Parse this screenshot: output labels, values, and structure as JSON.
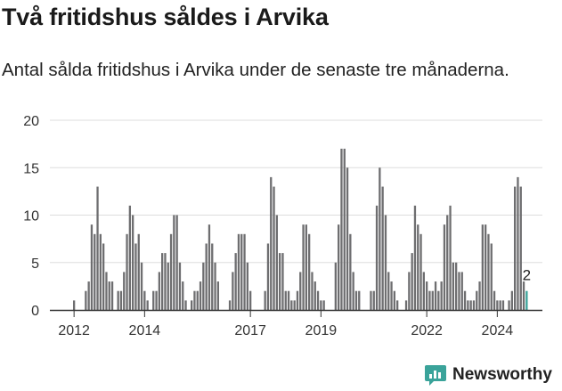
{
  "title": "Två fritidshus såldes i Arvika",
  "subtitle": "Antal sålda fritidshus i Arvika under de senaste tre månaderna.",
  "brand": {
    "name": "Newsworthy",
    "icon": "newsworthy-logo-icon",
    "color": "#3aa39a"
  },
  "chart_data": {
    "type": "bar",
    "title": "",
    "xlabel": "",
    "ylabel": "",
    "ylim": [
      0,
      20
    ],
    "yticks": [
      0,
      5,
      10,
      15,
      20
    ],
    "grid": true,
    "legend": "none",
    "xticks": [
      "2012",
      "2014",
      "2017",
      "2019",
      "2022",
      "2024"
    ],
    "bar_color": "#6e6e70",
    "highlight_color": "#3aa39a",
    "highlight_label": "2",
    "series": [
      {
        "values": [
          1,
          0,
          0,
          0,
          2,
          3,
          9,
          8,
          13,
          8,
          7,
          4,
          3,
          3,
          0,
          2,
          2,
          4,
          8,
          11,
          10,
          7,
          8,
          5,
          2,
          1,
          0,
          2,
          2,
          4,
          6,
          6,
          5,
          8,
          10,
          10,
          5,
          3,
          1,
          0,
          1,
          2,
          2,
          3,
          5,
          7,
          9,
          7,
          5,
          3,
          0,
          0,
          0,
          1,
          4,
          6,
          8,
          8,
          8,
          5,
          2,
          0,
          0,
          0,
          0,
          2,
          7,
          14,
          13,
          10,
          6,
          6,
          2,
          2,
          1,
          1,
          2,
          4,
          9,
          9,
          8,
          4,
          3,
          2,
          1,
          1,
          0,
          0,
          0,
          5,
          9,
          17,
          17,
          15,
          8,
          4,
          2,
          2,
          0,
          0,
          0,
          2,
          2,
          11,
          15,
          13,
          10,
          4,
          3,
          2,
          1,
          0,
          0,
          1,
          4,
          6,
          11,
          9,
          8,
          4,
          3,
          2,
          2,
          3,
          2,
          3,
          9,
          10,
          11,
          5,
          5,
          4,
          4,
          2,
          1,
          1,
          1,
          2,
          3,
          9,
          9,
          8,
          7,
          2,
          1,
          1,
          1,
          0,
          1,
          2,
          13,
          14,
          13,
          3,
          2
        ]
      }
    ]
  }
}
